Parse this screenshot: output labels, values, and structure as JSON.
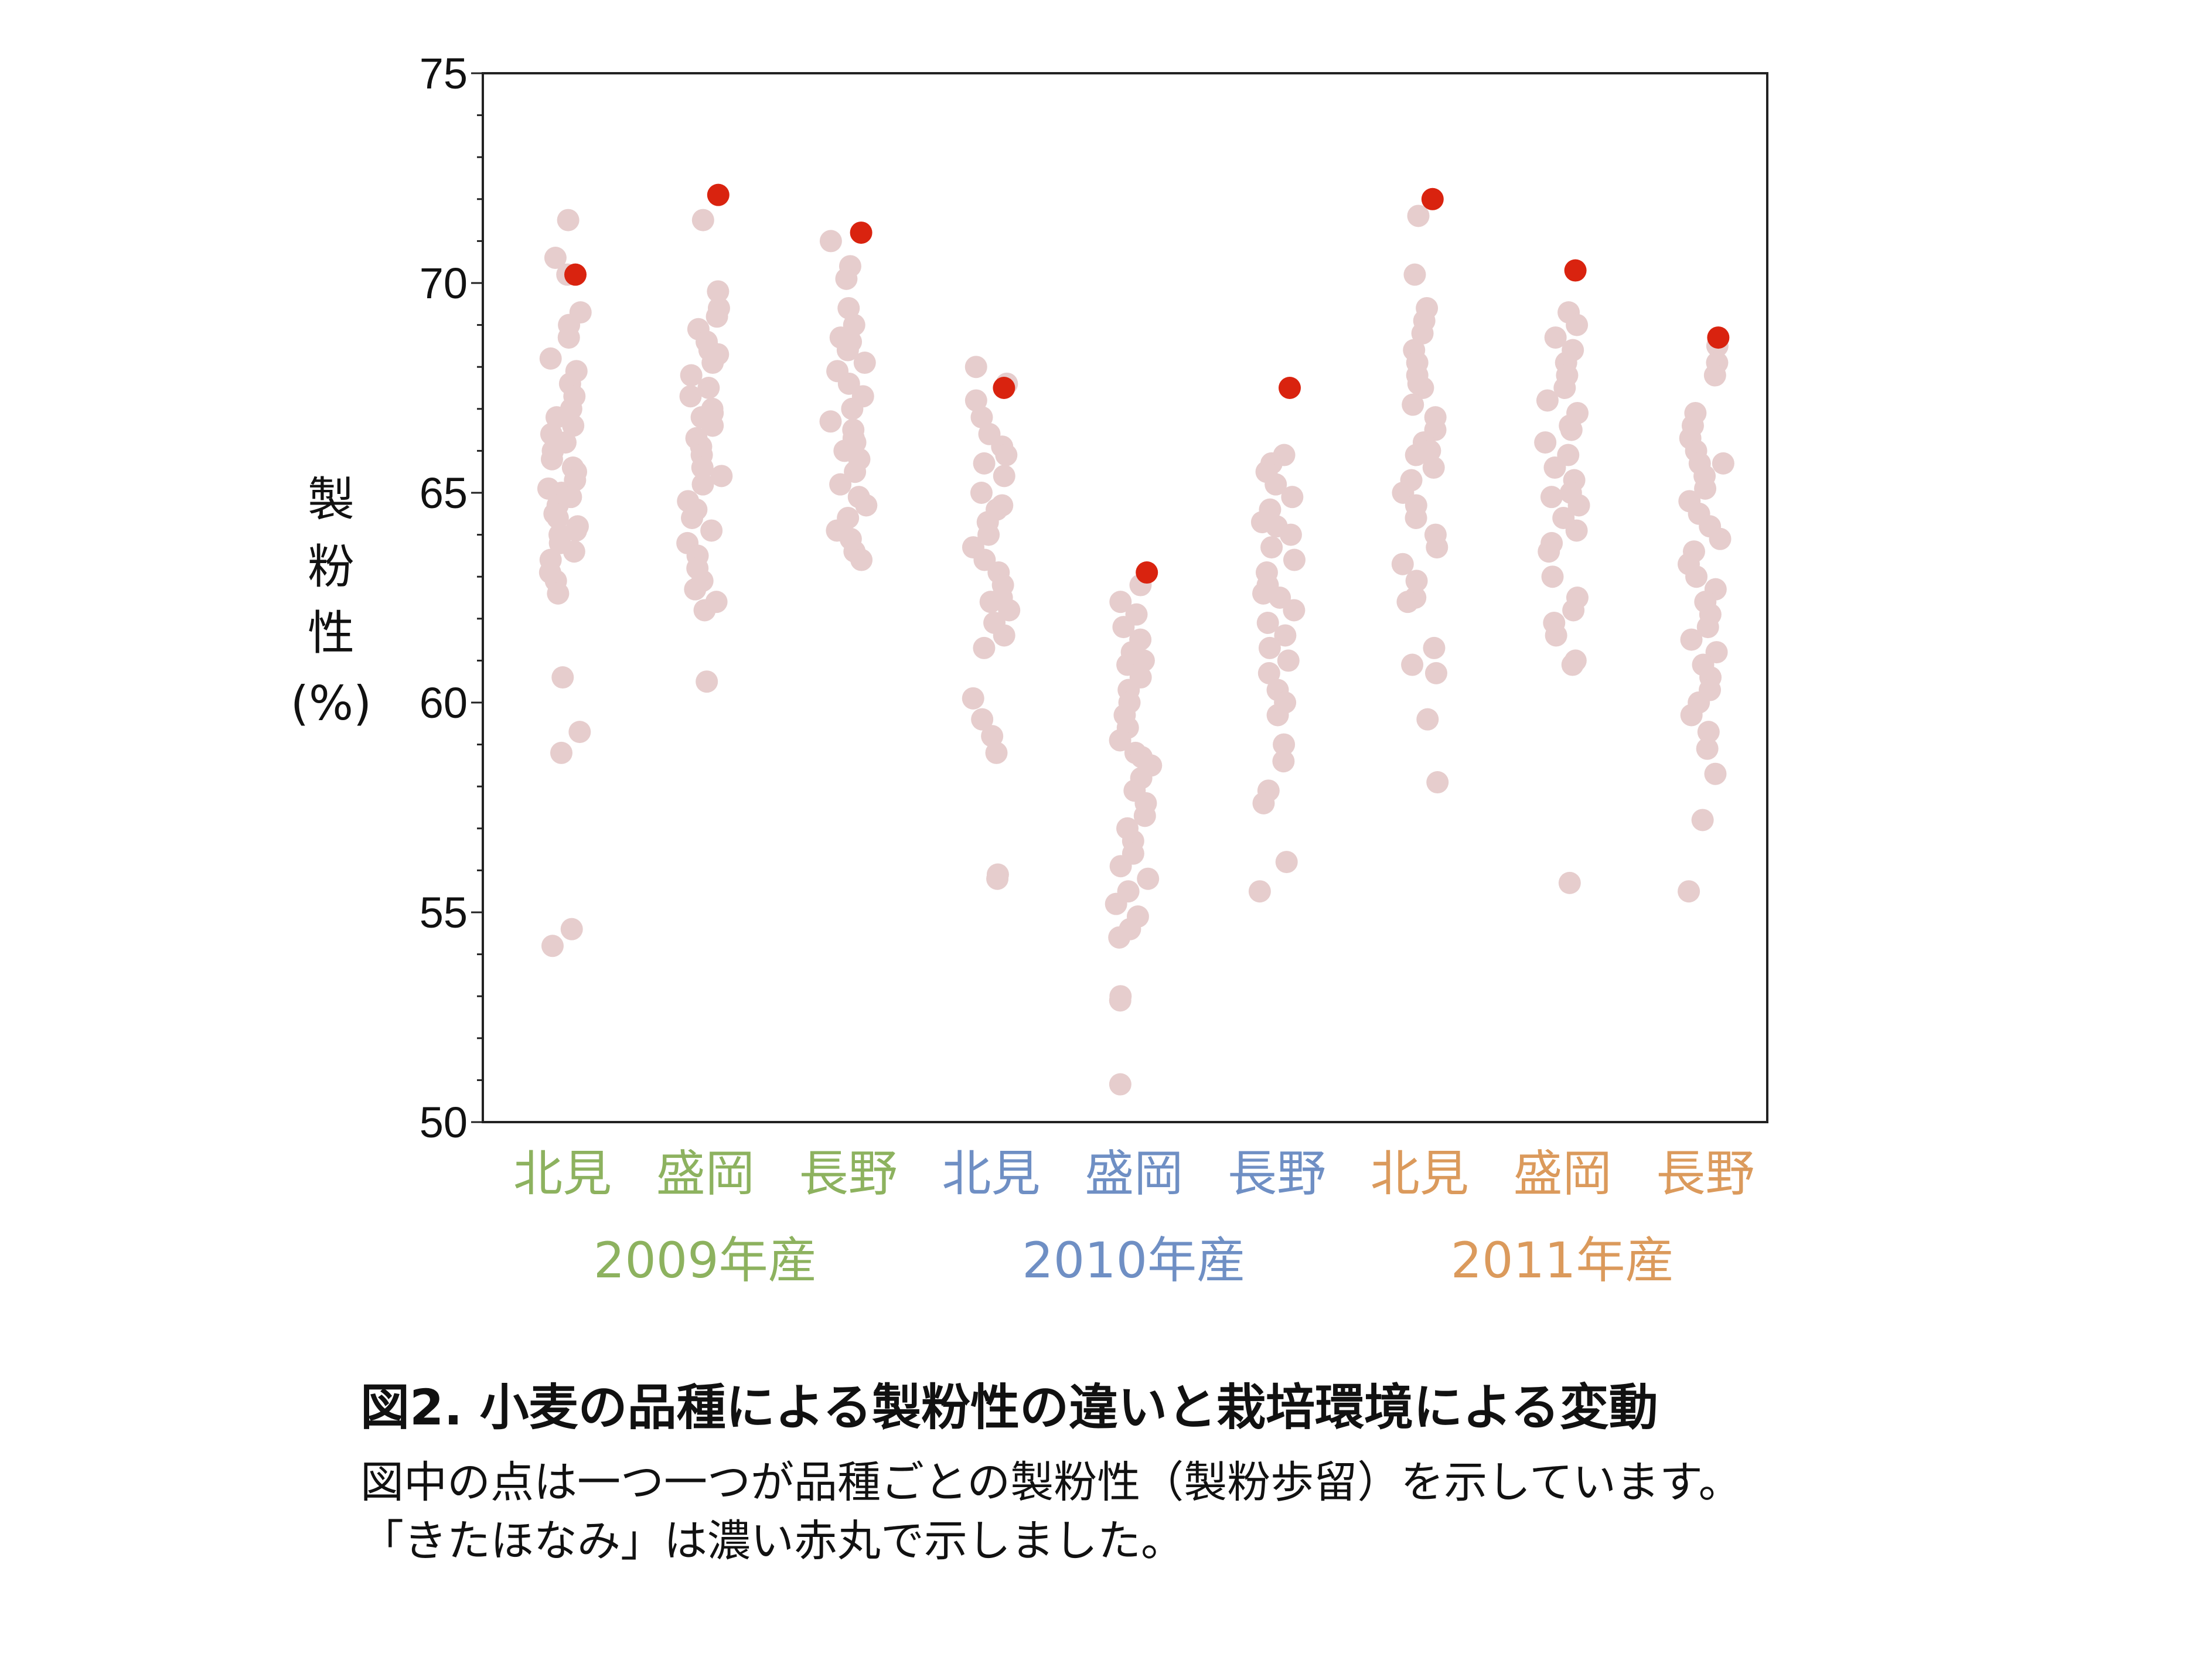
{
  "chart_data": {
    "type": "scatter",
    "title": "",
    "xlabel": "",
    "ylabel": [
      "製",
      "粉",
      "性",
      "(%)"
    ],
    "ylim": [
      50,
      75
    ],
    "yticks": [
      50,
      55,
      60,
      65,
      70,
      75
    ],
    "grid": false,
    "legend": "none",
    "categories": [
      {
        "label": "北見",
        "year": "2009年産"
      },
      {
        "label": "盛岡",
        "year": "2009年産"
      },
      {
        "label": "長野",
        "year": "2009年産"
      },
      {
        "label": "北見",
        "year": "2010年産"
      },
      {
        "label": "盛岡",
        "year": "2010年産"
      },
      {
        "label": "長野",
        "year": "2010年産"
      },
      {
        "label": "北見",
        "year": "2011年産"
      },
      {
        "label": "盛岡",
        "year": "2011年産"
      },
      {
        "label": "長野",
        "year": "2011年産"
      }
    ],
    "groups": [
      {
        "label": "2009年産",
        "color": "#8db25f"
      },
      {
        "label": "2010年産",
        "color": "#6f8fc4"
      },
      {
        "label": "2011年産",
        "color": "#db9a5c"
      }
    ],
    "colors": {
      "others": "#e6cdcd",
      "highlight": "#d9230f"
    },
    "series": [
      {
        "values": [
          [
            71.5,
            70.6,
            70.2,
            69.3,
            69.0,
            68.7,
            68.2,
            67.9,
            67.6,
            67.3,
            67.0,
            66.8,
            66.6,
            66.4,
            66.2,
            66.0,
            65.8,
            65.6,
            65.5,
            65.3,
            65.1,
            65.0,
            64.9,
            64.7,
            64.5,
            64.4,
            64.2,
            64.1,
            64.0,
            63.8,
            63.6,
            63.4,
            63.1,
            62.9,
            62.6,
            60.6,
            59.3,
            58.8,
            54.6,
            54.2
          ],
          [
            71.5,
            69.4,
            69.2,
            68.9,
            68.6,
            68.3,
            68.1,
            67.8,
            67.5,
            67.3,
            67.0,
            66.8,
            66.6,
            66.3,
            66.1,
            65.9,
            65.6,
            65.4,
            65.2,
            64.8,
            64.6,
            64.4,
            64.1,
            63.8,
            63.5,
            63.2,
            62.9,
            62.7,
            62.4,
            62.2,
            60.5,
            69.8,
            68.4,
            66.9
          ],
          [
            71.0,
            70.4,
            70.1,
            69.4,
            69.0,
            68.7,
            68.4,
            68.1,
            67.9,
            67.6,
            67.3,
            67.0,
            66.7,
            66.5,
            66.3,
            66.0,
            65.8,
            65.5,
            65.2,
            64.9,
            64.7,
            64.4,
            64.1,
            63.9,
            63.6,
            63.4,
            68.6,
            66.2
          ],
          [
            68.0,
            67.6,
            67.2,
            66.8,
            66.4,
            66.1,
            65.7,
            65.4,
            65.0,
            64.7,
            64.3,
            64.0,
            63.7,
            63.4,
            63.1,
            62.8,
            62.5,
            62.2,
            61.9,
            61.6,
            61.3,
            60.1,
            59.6,
            59.2,
            58.8,
            55.9,
            55.8,
            62.4,
            64.6,
            65.9
          ],
          [
            62.8,
            62.4,
            62.1,
            61.8,
            61.5,
            61.2,
            60.9,
            60.6,
            60.3,
            60.0,
            59.7,
            59.4,
            59.1,
            58.8,
            58.5,
            58.2,
            57.9,
            57.6,
            57.3,
            57.0,
            56.7,
            56.4,
            56.1,
            55.8,
            55.5,
            55.2,
            54.9,
            54.6,
            54.4,
            53.0,
            52.9,
            50.9,
            61.0,
            58.7
          ],
          [
            65.9,
            65.7,
            65.5,
            65.2,
            64.9,
            64.6,
            64.3,
            64.0,
            63.7,
            63.4,
            63.1,
            62.8,
            62.5,
            62.2,
            61.9,
            61.6,
            61.3,
            61.0,
            60.7,
            60.3,
            60.0,
            59.7,
            59.0,
            58.6,
            57.9,
            57.6,
            56.2,
            55.5,
            62.6,
            64.2
          ],
          [
            71.6,
            70.2,
            69.4,
            69.1,
            68.8,
            68.4,
            68.1,
            67.8,
            67.5,
            67.1,
            66.8,
            66.5,
            66.2,
            65.9,
            65.6,
            65.3,
            65.0,
            64.7,
            64.4,
            64.0,
            63.7,
            63.3,
            62.9,
            62.5,
            62.4,
            61.3,
            60.9,
            60.7,
            59.6,
            58.1,
            66.0,
            67.6
          ],
          [
            69.3,
            69.0,
            68.7,
            68.4,
            68.1,
            67.8,
            67.5,
            67.2,
            66.9,
            66.5,
            66.2,
            65.9,
            65.6,
            65.3,
            65.0,
            64.7,
            64.4,
            64.1,
            63.8,
            63.6,
            63.0,
            62.5,
            62.2,
            61.9,
            61.6,
            61.0,
            60.9,
            55.7,
            66.6,
            64.9
          ],
          [
            68.5,
            68.1,
            67.8,
            66.9,
            66.6,
            66.3,
            66.0,
            65.7,
            65.4,
            65.1,
            64.8,
            64.5,
            64.2,
            63.9,
            63.6,
            63.3,
            63.0,
            62.7,
            62.4,
            62.1,
            61.8,
            61.5,
            61.2,
            60.9,
            60.6,
            60.3,
            60.0,
            59.7,
            59.3,
            58.9,
            58.3,
            57.2,
            55.5,
            65.7
          ]
        ]
      },
      {
        "name": "きたほなみ",
        "values": [
          70.2,
          72.1,
          71.2,
          67.5,
          63.1,
          67.5,
          72.0,
          70.3,
          68.7
        ]
      }
    ]
  },
  "caption": {
    "title": "図2. 小麦の品種による製粉性の違いと栽培環境による変動",
    "line1": "図中の点は一つ一つが品種ごとの製粉性（製粉歩留）を示しています。",
    "line2": "「きたほなみ」は濃い赤丸で示しました。"
  }
}
